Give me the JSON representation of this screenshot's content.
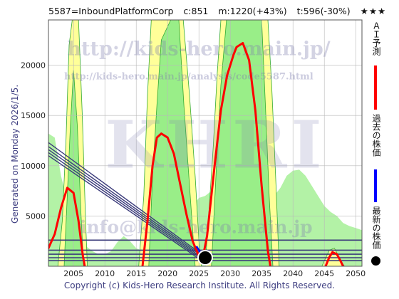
{
  "header": {
    "code_name": "5587=InboundPlatformCorp",
    "current": "c:851",
    "max": "m:1220(+43%)",
    "target": "t:596(-30%)",
    "stars": "★★★"
  },
  "side_label": "Generated on Monday 2026/1/5.",
  "footer": "Copyright (c) Kids-Hero Research Institute. All Rights Reserved.",
  "watermarks": {
    "url1": "http://kids-hero.main.jp/",
    "url2": "http://kids-hero.main.jp/analysis/code5587.html",
    "logo": "KHRI",
    "email": "info@kids-hero.main.jp"
  },
  "legend": {
    "ai": "ＡＩ予測",
    "past": "過去の株価",
    "latest": "最新の株価"
  },
  "colors": {
    "ai": "#ff0000",
    "past": "#0000ff",
    "latest": "#000000",
    "green_fill": "#99ee88",
    "yellow_fill": "#ffff99",
    "trend": "#3a3a7a"
  },
  "chart_data": {
    "type": "line",
    "xlim": [
      2001,
      2051
    ],
    "ylim": [
      0,
      24500
    ],
    "x_ticks": [
      2005,
      2010,
      2015,
      2020,
      2025,
      2030,
      2035,
      2040,
      2045,
      2050
    ],
    "y_ticks": [
      5000,
      10000,
      15000,
      20000
    ],
    "grid": true,
    "legend_placement": "right",
    "series": [
      {
        "name": "ＡＩ予測",
        "segments": [
          [
            [
              2001,
              1800
            ],
            [
              2002,
              3200
            ],
            [
              2003,
              5800
            ],
            [
              2004,
              7800
            ],
            [
              2005,
              7300
            ],
            [
              2005.8,
              4500
            ],
            [
              2006.5,
              1000
            ],
            [
              2006.8,
              0
            ]
          ],
          [
            [
              2016,
              0
            ],
            [
              2016.8,
              4500
            ],
            [
              2017.6,
              10000
            ],
            [
              2018.3,
              12800
            ],
            [
              2019,
              13200
            ],
            [
              2020,
              12800
            ],
            [
              2021,
              11200
            ],
            [
              2022,
              8200
            ],
            [
              2023,
              5200
            ],
            [
              2024,
              2500
            ],
            [
              2025,
              1000
            ],
            [
              2025.6,
              800
            ]
          ],
          [
            [
              2025.6,
              800
            ],
            [
              2026.3,
              3000
            ],
            [
              2027.5,
              10000
            ],
            [
              2028.5,
              15500
            ],
            [
              2029.5,
              19000
            ],
            [
              2030.5,
              21000
            ],
            [
              2031,
              21800
            ],
            [
              2032,
              22200
            ],
            [
              2033,
              20500
            ],
            [
              2034,
              15500
            ],
            [
              2035,
              8000
            ],
            [
              2036,
              1500
            ],
            [
              2036.4,
              0
            ]
          ],
          [
            [
              2045.2,
              0
            ],
            [
              2045.8,
              900
            ],
            [
              2046.3,
              1400
            ],
            [
              2047,
              1200
            ],
            [
              2047.6,
              500
            ],
            [
              2048,
              0
            ]
          ]
        ]
      },
      {
        "name": "過去の株価",
        "segments": [
          [
            [
              2024.6,
              2000
            ],
            [
              2024.9,
              1700
            ],
            [
              2025.2,
              1400
            ],
            [
              2025.6,
              1100
            ],
            [
              2025.9,
              851
            ]
          ]
        ]
      },
      {
        "name": "最新の株価",
        "points": [
          [
            2026,
            851
          ]
        ]
      }
    ],
    "trend_lines": [
      [
        [
          2001,
          12300
        ],
        [
          2026.3,
          800
        ]
      ],
      [
        [
          2001,
          11900
        ],
        [
          2026.3,
          650
        ]
      ],
      [
        [
          2001,
          11600
        ],
        [
          2026.3,
          500
        ]
      ],
      [
        [
          2001,
          11300
        ],
        [
          2026.3,
          350
        ]
      ],
      [
        [
          2001,
          11000
        ],
        [
          2026.3,
          200
        ]
      ]
    ],
    "horizontal_levels": [
      2600,
      1600,
      1200,
      850,
      550
    ],
    "green_band": [
      [
        2001,
        13200
      ],
      [
        2002,
        12800
      ],
      [
        2003,
        9000
      ],
      [
        2004,
        6500
      ],
      [
        2005,
        5000
      ],
      [
        2006,
        3200
      ],
      [
        2007,
        2000
      ],
      [
        2008,
        1500
      ],
      [
        2009,
        1200
      ],
      [
        2010,
        1200
      ],
      [
        2011,
        1500
      ],
      [
        2012,
        2400
      ],
      [
        2013,
        3000
      ],
      [
        2014,
        2500
      ],
      [
        2015,
        1800
      ],
      [
        2016,
        1500
      ],
      [
        2017,
        2500
      ],
      [
        2018,
        3000
      ],
      [
        2019,
        3800
      ],
      [
        2020,
        4200
      ],
      [
        2021,
        5000
      ],
      [
        2022,
        5200
      ],
      [
        2023,
        5600
      ],
      [
        2024,
        6000
      ],
      [
        2025,
        6800
      ],
      [
        2026,
        7000
      ],
      [
        2027,
        7500
      ],
      [
        2028,
        9000
      ],
      [
        2029,
        10500
      ],
      [
        2030,
        11000
      ],
      [
        2031,
        11500
      ],
      [
        2032,
        11200
      ],
      [
        2033,
        11000
      ],
      [
        2034,
        10500
      ],
      [
        2035,
        9500
      ],
      [
        2036,
        8000
      ],
      [
        2037,
        7000
      ],
      [
        2038,
        7800
      ],
      [
        2039,
        9000
      ],
      [
        2040,
        9500
      ],
      [
        2041,
        9600
      ],
      [
        2042,
        9000
      ],
      [
        2043,
        8000
      ],
      [
        2044,
        7000
      ],
      [
        2045,
        6000
      ],
      [
        2046,
        5400
      ],
      [
        2047,
        5000
      ],
      [
        2048,
        4300
      ],
      [
        2049,
        4000
      ],
      [
        2050,
        3800
      ],
      [
        2051,
        3600
      ]
    ],
    "envelope_segments": [
      [
        [
          2002.5,
          0
        ],
        [
          2003.2,
          4500
        ],
        [
          2003.8,
          12500
        ],
        [
          2004.3,
          22000
        ],
        [
          2004.8,
          24500
        ],
        [
          2005.8,
          24500
        ],
        [
          2006.4,
          15000
        ],
        [
          2006.9,
          5000
        ],
        [
          2007.2,
          0
        ]
      ],
      [
        [
          2015.4,
          0
        ],
        [
          2016.2,
          7000
        ],
        [
          2016.8,
          17000
        ],
        [
          2017.4,
          24500
        ],
        [
          2022.5,
          24500
        ],
        [
          2023.5,
          17000
        ],
        [
          2024.4,
          9000
        ],
        [
          2025,
          2500
        ],
        [
          2025.4,
          0
        ]
      ],
      [
        [
          2026,
          0
        ],
        [
          2026.6,
          5500
        ],
        [
          2027.3,
          12000
        ],
        [
          2027.9,
          19000
        ],
        [
          2028.5,
          24500
        ],
        [
          2036,
          24500
        ],
        [
          2036.6,
          18000
        ],
        [
          2037.3,
          8000
        ],
        [
          2037.8,
          0
        ]
      ],
      [
        [
          2044.6,
          0
        ],
        [
          2045.2,
          800
        ],
        [
          2045.8,
          1600
        ],
        [
          2046.6,
          1800
        ],
        [
          2047.2,
          1100
        ],
        [
          2047.8,
          400
        ],
        [
          2048.2,
          0
        ]
      ]
    ],
    "inner_segments": [
      [
        [
          2003.5,
          0
        ],
        [
          2004,
          7000
        ],
        [
          2004.5,
          14000
        ],
        [
          2005,
          19500
        ],
        [
          2005.6,
          14000
        ],
        [
          2006.2,
          5000
        ],
        [
          2006.6,
          0
        ]
      ],
      [
        [
          2017,
          0
        ],
        [
          2017.6,
          9000
        ],
        [
          2018.3,
          16000
        ],
        [
          2019,
          22500
        ],
        [
          2020.5,
          24500
        ],
        [
          2021.8,
          24500
        ],
        [
          2022.6,
          16000
        ],
        [
          2023.5,
          8000
        ],
        [
          2024.4,
          0
        ]
      ],
      [
        [
          2027,
          0
        ],
        [
          2027.8,
          10000
        ],
        [
          2028.5,
          18000
        ],
        [
          2029.4,
          24500
        ],
        [
          2035,
          24500
        ],
        [
          2035.6,
          16000
        ],
        [
          2036.2,
          7000
        ],
        [
          2036.8,
          0
        ]
      ]
    ]
  }
}
